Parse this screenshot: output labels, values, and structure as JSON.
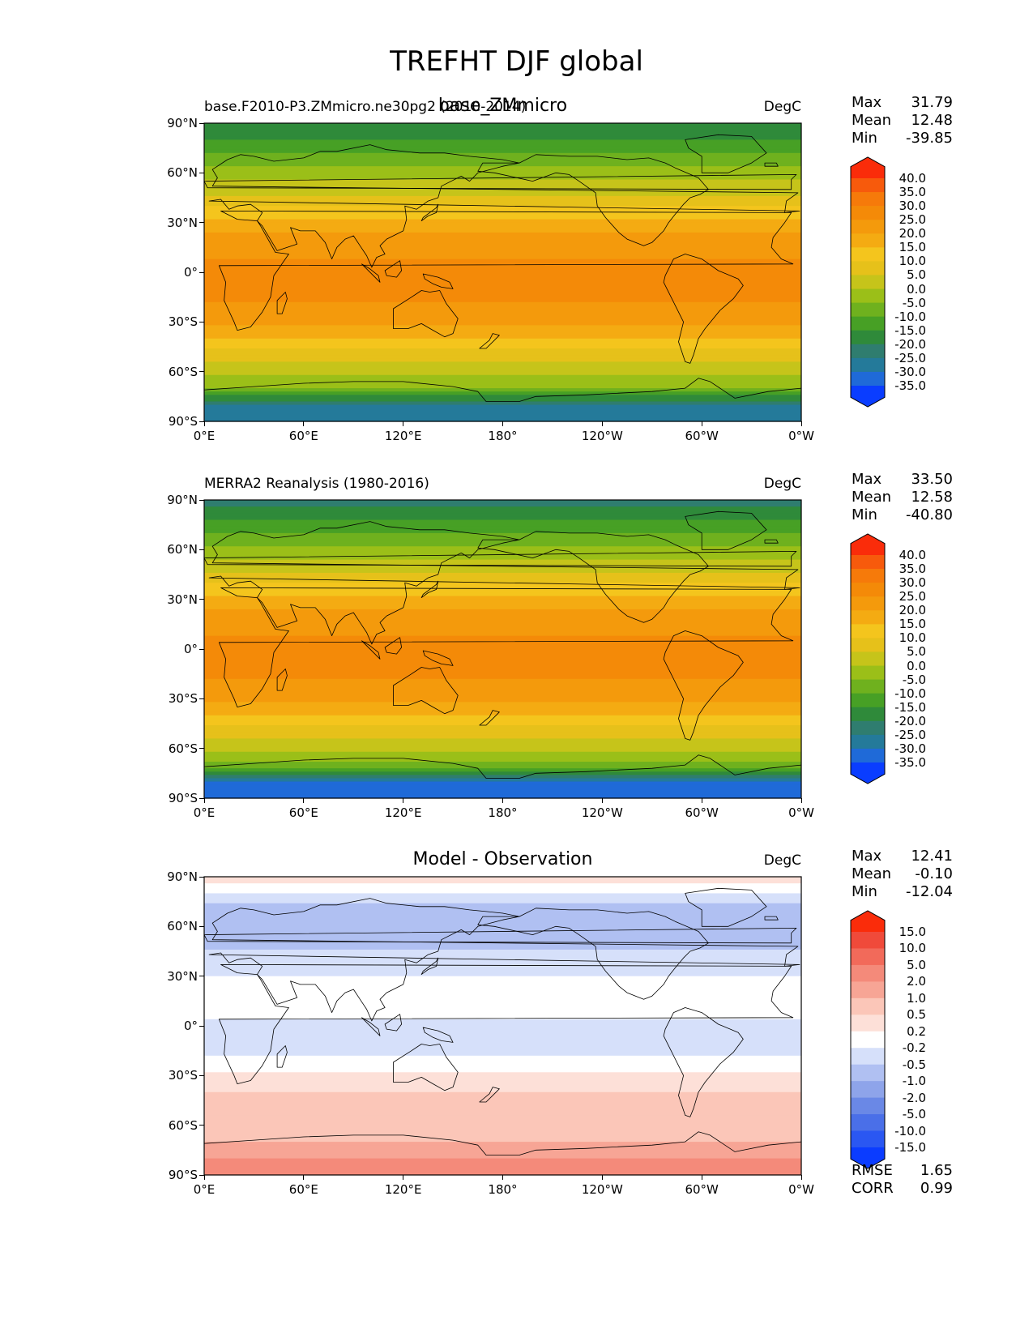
{
  "figure": {
    "title": "TREFHT DJF global"
  },
  "axes_ticks": {
    "lat": [
      "90°N",
      "60°N",
      "30°N",
      "0°",
      "30°S",
      "60°S",
      "90°S"
    ],
    "lon": [
      "0°E",
      "60°E",
      "120°E",
      "180°",
      "120°W",
      "60°W",
      "0°W"
    ]
  },
  "panels": [
    {
      "id": "model",
      "left_title": "base.F2010-P3.ZMmicro.ne30pg2 (2010-2014)",
      "center_title": "base_ZMmicro",
      "units": "DegC",
      "stats": [
        {
          "label": "Max",
          "value": "31.79"
        },
        {
          "label": "Mean",
          "value": "12.48"
        },
        {
          "label": "Min",
          "value": "-39.85"
        }
      ],
      "colorbar_labels": [
        "40.0",
        "35.0",
        "30.0",
        "25.0",
        "20.0",
        "15.0",
        "10.0",
        "5.0",
        "0.0",
        "-5.0",
        "-10.0",
        "-15.0",
        "-20.0",
        "-25.0",
        "-30.0",
        "-35.0"
      ],
      "extra_stats": []
    },
    {
      "id": "obs",
      "left_title": "MERRA2 Reanalysis (1980-2016)",
      "center_title": "",
      "units": "DegC",
      "stats": [
        {
          "label": "Max",
          "value": "33.50"
        },
        {
          "label": "Mean",
          "value": "12.58"
        },
        {
          "label": "Min",
          "value": "-40.80"
        }
      ],
      "colorbar_labels": [
        "40.0",
        "35.0",
        "30.0",
        "25.0",
        "20.0",
        "15.0",
        "10.0",
        "5.0",
        "0.0",
        "-5.0",
        "-10.0",
        "-15.0",
        "-20.0",
        "-25.0",
        "-30.0",
        "-35.0"
      ],
      "extra_stats": []
    },
    {
      "id": "diff",
      "left_title": "",
      "center_title": "Model - Observation",
      "units": "DegC",
      "stats": [
        {
          "label": "Max",
          "value": "12.41"
        },
        {
          "label": "Mean",
          "value": "-0.10"
        },
        {
          "label": "Min",
          "value": "-12.04"
        }
      ],
      "colorbar_labels": [
        "15.0",
        "10.0",
        "5.0",
        "2.0",
        "1.0",
        "0.5",
        "0.2",
        "-0.2",
        "-0.5",
        "-1.0",
        "-2.0",
        "-5.0",
        "-10.0",
        "-15.0"
      ],
      "extra_stats": [
        {
          "label": "RMSE",
          "value": "1.65"
        },
        {
          "label": "CORR",
          "value": "0.99"
        }
      ]
    }
  ],
  "chart_data": [
    {
      "type": "heatmap",
      "title": "base_ZMmicro",
      "subtitle": "base.F2010-P3.ZMmicro.ne30pg2 (2010-2014)",
      "variable": "TREFHT",
      "season": "DJF",
      "region": "global",
      "units": "DegC",
      "x_axis": "longitude",
      "xlim": [
        0,
        360
      ],
      "y_axis": "latitude",
      "ylim": [
        -90,
        90
      ],
      "max": 31.79,
      "mean": 12.48,
      "min": -39.85,
      "contour_levels": [
        -35,
        -30,
        -25,
        -20,
        -15,
        -10,
        -5,
        0,
        5,
        10,
        15,
        20,
        25,
        30,
        35,
        40
      ],
      "colormap": [
        "#0a3dff",
        "#1f6ad8",
        "#247a9a",
        "#2f7d6f",
        "#2f8a3a",
        "#47a025",
        "#6fb11e",
        "#9bbf18",
        "#c6c41a",
        "#e6c11a",
        "#f4c51d",
        "#f4ab12",
        "#f49a0c",
        "#f48a08",
        "#f67a0a",
        "#f75a0c",
        "#fa2c0a"
      ],
      "zonal_profile": [
        {
          "lat": 90,
          "value": -20
        },
        {
          "lat": 75,
          "value": -12
        },
        {
          "lat": 60,
          "value": -3
        },
        {
          "lat": 45,
          "value": 6
        },
        {
          "lat": 30,
          "value": 17
        },
        {
          "lat": 15,
          "value": 24
        },
        {
          "lat": 0,
          "value": 26
        },
        {
          "lat": -15,
          "value": 26
        },
        {
          "lat": -30,
          "value": 21
        },
        {
          "lat": -45,
          "value": 11
        },
        {
          "lat": -60,
          "value": 1
        },
        {
          "lat": -70,
          "value": -5
        },
        {
          "lat": -80,
          "value": -26
        },
        {
          "lat": -90,
          "value": -28
        }
      ]
    },
    {
      "type": "heatmap",
      "title": "MERRA2 Reanalysis (1980-2016)",
      "variable": "TREFHT",
      "season": "DJF",
      "region": "global",
      "units": "DegC",
      "x_axis": "longitude",
      "xlim": [
        0,
        360
      ],
      "y_axis": "latitude",
      "ylim": [
        -90,
        90
      ],
      "max": 33.5,
      "mean": 12.58,
      "min": -40.8,
      "contour_levels": [
        -35,
        -30,
        -25,
        -20,
        -15,
        -10,
        -5,
        0,
        5,
        10,
        15,
        20,
        25,
        30,
        35,
        40
      ],
      "colormap": [
        "#0a3dff",
        "#1f6ad8",
        "#247a9a",
        "#2f7d6f",
        "#2f8a3a",
        "#47a025",
        "#6fb11e",
        "#9bbf18",
        "#c6c41a",
        "#e6c11a",
        "#f4c51d",
        "#f4ab12",
        "#f49a0c",
        "#f48a08",
        "#f67a0a",
        "#f75a0c",
        "#fa2c0a"
      ],
      "zonal_profile": [
        {
          "lat": 90,
          "value": -22
        },
        {
          "lat": 75,
          "value": -13
        },
        {
          "lat": 60,
          "value": -4
        },
        {
          "lat": 45,
          "value": 6
        },
        {
          "lat": 30,
          "value": 17
        },
        {
          "lat": 15,
          "value": 24
        },
        {
          "lat": 0,
          "value": 26
        },
        {
          "lat": -15,
          "value": 26
        },
        {
          "lat": -30,
          "value": 21
        },
        {
          "lat": -45,
          "value": 11
        },
        {
          "lat": -60,
          "value": 1
        },
        {
          "lat": -70,
          "value": -6
        },
        {
          "lat": -80,
          "value": -30
        },
        {
          "lat": -90,
          "value": -32
        }
      ]
    },
    {
      "type": "heatmap",
      "title": "Model - Observation",
      "variable": "TREFHT",
      "season": "DJF",
      "region": "global",
      "units": "DegC",
      "x_axis": "longitude",
      "xlim": [
        0,
        360
      ],
      "y_axis": "latitude",
      "ylim": [
        -90,
        90
      ],
      "max": 12.41,
      "mean": -0.1,
      "min": -12.04,
      "rmse": 1.65,
      "corr": 0.99,
      "contour_levels": [
        -15,
        -10,
        -5,
        -2,
        -1,
        -0.5,
        -0.2,
        0.2,
        0.5,
        1,
        2,
        5,
        10,
        15
      ],
      "colormap": [
        "#0b3cff",
        "#2a57f2",
        "#4a6fe8",
        "#6a88e6",
        "#8ea4ea",
        "#b0c0f2",
        "#d6e0fa",
        "#ffffff",
        "#fde0d8",
        "#fbc6b8",
        "#f7a595",
        "#f48a7a",
        "#f26a5a",
        "#f04a3a",
        "#fa2c0a"
      ],
      "zonal_profile": [
        {
          "lat": 90,
          "value": 0.5
        },
        {
          "lat": 75,
          "value": -0.5
        },
        {
          "lat": 60,
          "value": -1
        },
        {
          "lat": 45,
          "value": -0.5
        },
        {
          "lat": 30,
          "value": -0.2
        },
        {
          "lat": 15,
          "value": 0
        },
        {
          "lat": 0,
          "value": -0.3
        },
        {
          "lat": -15,
          "value": -0.3
        },
        {
          "lat": -30,
          "value": 0.3
        },
        {
          "lat": -45,
          "value": 0.6
        },
        {
          "lat": -60,
          "value": 0.5
        },
        {
          "lat": -70,
          "value": 1
        },
        {
          "lat": -80,
          "value": 2
        },
        {
          "lat": -90,
          "value": 2
        }
      ]
    }
  ]
}
